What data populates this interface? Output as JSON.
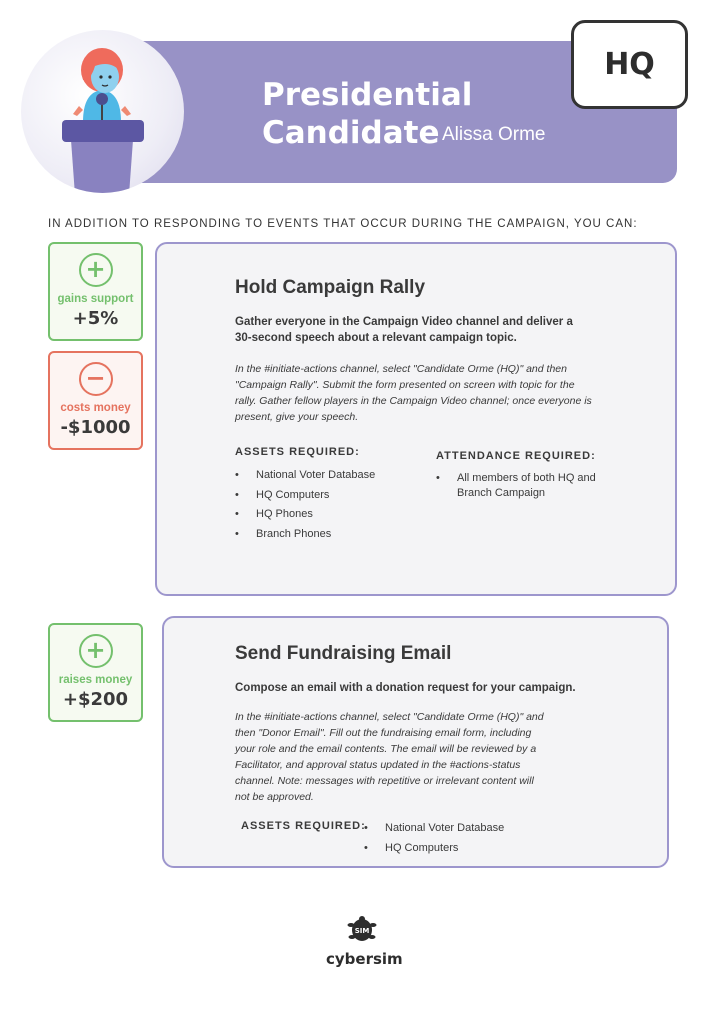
{
  "header": {
    "title_line1": "Presidential",
    "title_line2": "Candidate",
    "candidate_name": "Alissa Orme",
    "badge": "HQ",
    "banner_color": "#9892c6",
    "icon": "candidate-at-podium-icon"
  },
  "intro": "IN ADDITION TO RESPONDING TO EVENTS THAT OCCUR DURING THE CAMPAIGN, YOU CAN:",
  "actions": [
    {
      "title": "Hold Campaign Rally",
      "description": "Gather everyone in the Campaign Video channel and deliver a 30-second speech about a relevant campaign topic.",
      "instructions": "In the #initiate-actions channel, select \"Candidate Orme (HQ)\" and then \"Campaign Rally\". Submit the form presented on screen with topic for the rally. Gather fellow players in the Campaign Video channel; once everyone is present, give your speech.",
      "assets_label": "ASSETS REQUIRED:",
      "assets": [
        "National Voter Database",
        "HQ Computers",
        "HQ Phones",
        "Branch Phones"
      ],
      "attendance_label": "ATTENDANCE REQUIRED:",
      "attendance": [
        "All members of both HQ and Branch Campaign"
      ],
      "effects": [
        {
          "icon": "plus-icon",
          "label": "gains support",
          "value": "+5%",
          "color": "#74c06d"
        },
        {
          "icon": "minus-icon",
          "label": "costs money",
          "value": "-$1000",
          "color": "#e5735f"
        }
      ]
    },
    {
      "title": "Send Fundraising Email",
      "description": "Compose an email with a donation request for your campaign.",
      "instructions": "In the #initiate-actions channel, select \"Candidate Orme (HQ)\" and then \"Donor Email\". Fill out the fundraising email form, including your role and the email contents. The email will be reviewed by a Facilitator, and approval status updated in the #actions-status channel. Note: messages with repetitive or irrelevant content will not be approved.",
      "assets_label": "ASSETS REQUIRED:",
      "assets": [
        "National Voter Database",
        "HQ Computers"
      ],
      "effects": [
        {
          "icon": "plus-icon",
          "label": "raises money",
          "value": "+$200",
          "color": "#74c06d"
        }
      ]
    }
  ],
  "footer": {
    "logo_text": "cybersim",
    "logo_mark": "SIM",
    "icon": "cybersim-turtle-logo-icon"
  }
}
